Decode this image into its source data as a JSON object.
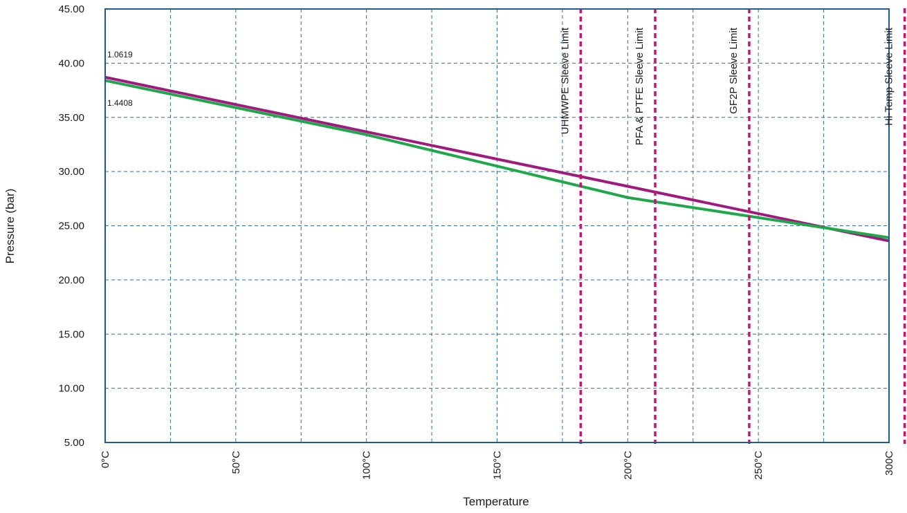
{
  "chart_data": {
    "type": "line",
    "xlabel": "Temperature",
    "ylabel": "Pressure (bar)",
    "xlim": [
      0,
      300
    ],
    "ylim": [
      5,
      45
    ],
    "grid": true,
    "x_ticks": [
      {
        "value": 0,
        "label": "0°C"
      },
      {
        "value": 50,
        "label": "50°C"
      },
      {
        "value": 100,
        "label": "100°C"
      },
      {
        "value": 150,
        "label": "150°C"
      },
      {
        "value": 200,
        "label": "200°C"
      },
      {
        "value": 250,
        "label": "250°C"
      },
      {
        "value": 300,
        "label": "300C"
      }
    ],
    "y_ticks": [
      {
        "value": 45,
        "label": "45.00"
      },
      {
        "value": 40,
        "label": "40.00"
      },
      {
        "value": 35,
        "label": "35.00"
      },
      {
        "value": 30,
        "label": "30.00"
      },
      {
        "value": 25,
        "label": "25.00"
      },
      {
        "value": 20,
        "label": "20.00"
      },
      {
        "value": 15,
        "label": "15.00"
      },
      {
        "value": 10,
        "label": "10.00"
      },
      {
        "value": 5,
        "label": "5.00"
      }
    ],
    "series": [
      {
        "label": "1.0619",
        "color": "#a1197f",
        "points": [
          [
            0,
            38.7
          ],
          [
            300,
            23.6
          ]
        ]
      },
      {
        "label": "1.4408",
        "color": "#1fa84a",
        "points": [
          [
            0,
            38.4
          ],
          [
            100,
            33.4
          ],
          [
            200,
            27.6
          ],
          [
            300,
            23.9
          ]
        ]
      }
    ],
    "limits": [
      {
        "x": 182,
        "label": "UHMWPE Sleeve Limit",
        "color": "#c2186b"
      },
      {
        "x": 210.5,
        "label": "PFA & PTFE Sleeve Limit",
        "color": "#c2186b"
      },
      {
        "x": 246.5,
        "label": "GF2P Sleeve Limit",
        "color": "#c2186b"
      },
      {
        "x": 306,
        "label": "Hi-Temp Sleeve Limit",
        "color": "#c2186b"
      }
    ],
    "colors": {
      "frame": "#1e5b94",
      "grid": "#2d6fa7"
    }
  }
}
